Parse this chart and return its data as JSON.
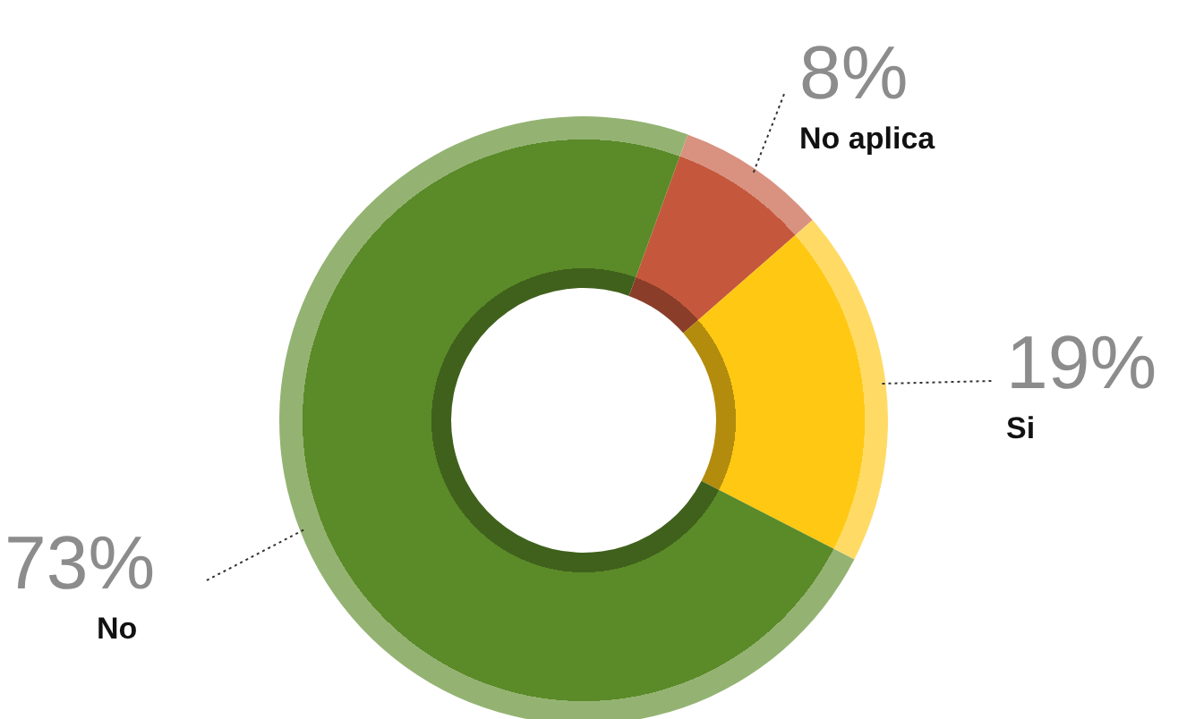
{
  "chart_data": {
    "type": "donut",
    "categories": [
      "No aplica",
      "Si",
      "No"
    ],
    "values": [
      8,
      19,
      73
    ],
    "colors": [
      "#c5583c",
      "#ffc813",
      "#5b8a28"
    ],
    "value_labels": [
      "8%",
      "19%",
      "73%"
    ]
  }
}
